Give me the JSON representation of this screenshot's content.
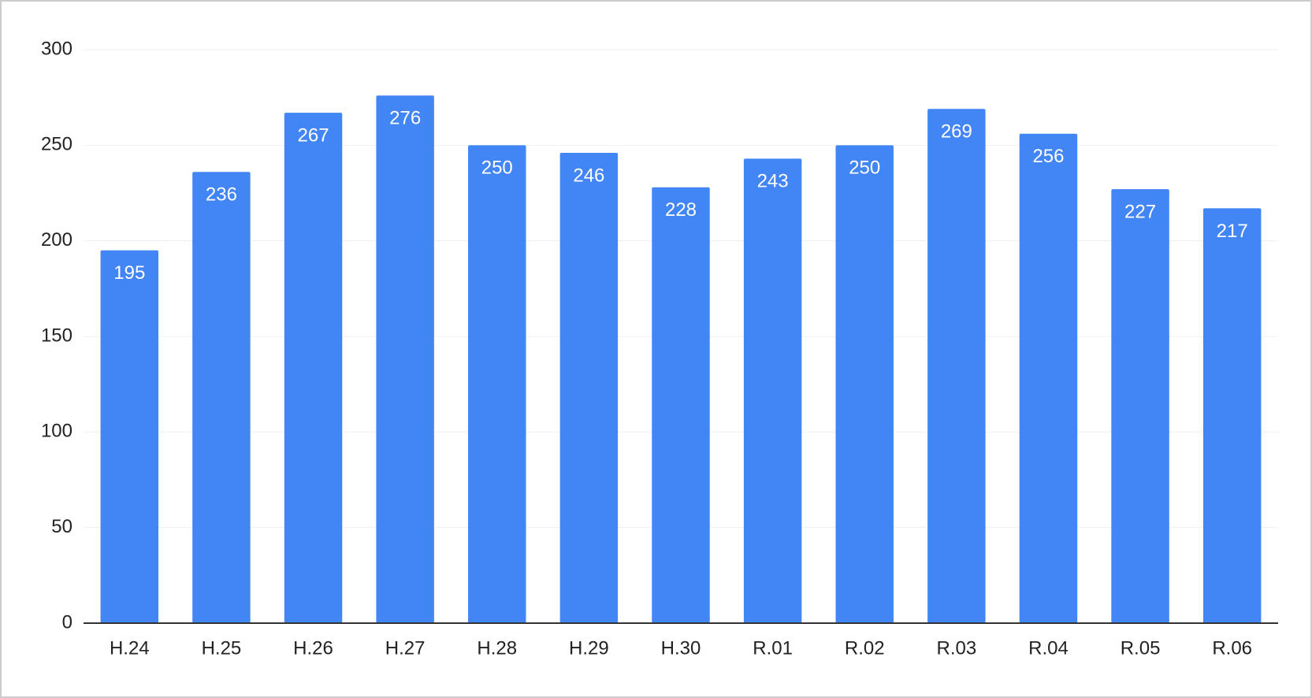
{
  "chart_data": {
    "type": "bar",
    "categories": [
      "H.24",
      "H.25",
      "H.26",
      "H.27",
      "H.28",
      "H.29",
      "H.30",
      "R.01",
      "R.02",
      "R.03",
      "R.04",
      "R.05",
      "R.06"
    ],
    "values": [
      195,
      236,
      267,
      276,
      250,
      246,
      228,
      243,
      250,
      269,
      256,
      227,
      217
    ],
    "color": "#4285f4",
    "ylim": [
      0,
      300
    ],
    "yticks": [
      0,
      50,
      100,
      150,
      200,
      250,
      300
    ],
    "grid": true
  }
}
